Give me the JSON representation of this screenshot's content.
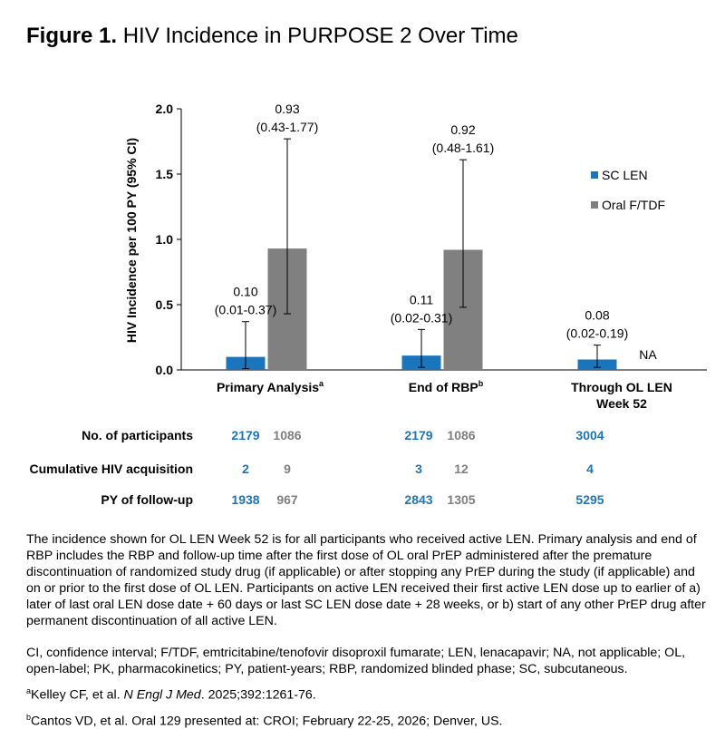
{
  "figure": {
    "label": "Figure 1.",
    "title": "HIV Incidence in PURPOSE 2 Over Time"
  },
  "colors": {
    "sc_len": "#1b75bc",
    "oral_ftdf": "#808080",
    "table_oral": "#7f7f7f"
  },
  "chart_data": {
    "type": "bar",
    "ylabel": "HIV Incidence per 100 PY (95% CI)",
    "ylim": [
      0,
      2.0
    ],
    "yticks": [
      "0.0",
      "0.5",
      "1.0",
      "1.5",
      "2.0"
    ],
    "ytick_values": [
      0,
      0.5,
      1.0,
      1.5,
      2.0
    ],
    "grid": false,
    "legend_position": "right",
    "categories": [
      {
        "label": "Primary Analysis",
        "sup": "a",
        "line2": ""
      },
      {
        "label": "End of RBP",
        "sup": "b",
        "line2": ""
      },
      {
        "label": "Through OL LEN",
        "sup": "",
        "line2": "Week 52"
      }
    ],
    "series": [
      {
        "name": "SC LEN",
        "values": [
          0.1,
          0.11,
          0.08
        ],
        "ci_low": [
          0.01,
          0.02,
          0.02
        ],
        "ci_high": [
          0.37,
          0.31,
          0.19
        ],
        "labels": [
          "0.10",
          "0.11",
          "0.08"
        ],
        "ci_labels": [
          "(0.01-0.37)",
          "(0.02-0.31)",
          "(0.02-0.19)"
        ]
      },
      {
        "name": "Oral F/TDF",
        "values": [
          0.93,
          0.92,
          null
        ],
        "ci_low": [
          0.43,
          0.48,
          null
        ],
        "ci_high": [
          1.77,
          1.61,
          null
        ],
        "labels": [
          "0.93",
          "0.92",
          "NA"
        ],
        "ci_labels": [
          "(0.43-1.77)",
          "(0.48-1.61)",
          ""
        ]
      }
    ]
  },
  "table": {
    "rows": [
      {
        "label": "No. of participants",
        "values": [
          "2179",
          "1086",
          "2179",
          "1086",
          "3004"
        ]
      },
      {
        "label": "Cumulative HIV acquisition",
        "values": [
          "2",
          "9",
          "3",
          "12",
          "4"
        ]
      },
      {
        "label": "PY of follow-up",
        "values": [
          "1938",
          "967",
          "2843",
          "1305",
          "5295"
        ]
      }
    ]
  },
  "notes": {
    "paragraph": "The incidence shown for OL LEN Week 52 is for all participants who received active LEN. Primary analysis and end of RBP includes the RBP and follow-up time after the first dose of OL oral PrEP administered after the premature discontinuation of randomized study drug (if applicable) or after stopping any PrEP during the study (if applicable) and on or prior to the first dose of OL LEN. Participants on active LEN received their first active LEN dose up to earlier of a) later of last oral LEN dose date + 60 days or last SC LEN dose date + 28 weeks, or b) start of any other PrEP drug after permanent discontinuation of all active LEN.",
    "abbreviations": "CI, confidence interval; F/TDF, emtricitabine/tenofovir disoproxil fumarate; LEN, lenacapavir; NA, not applicable; OL, open-label; PK, pharmacokinetics; PY, patient-years; RBP, randomized blinded phase; SC, subcutaneous.",
    "ref_a": {
      "sup": "a",
      "pre": "Kelley CF, et al. ",
      "journal": "N Engl J Med",
      "post": ". 2025;392:1261-76."
    },
    "ref_b": {
      "sup": "b",
      "text": "Cantos VD, et al. Oral 129 presented at: CROI; February 22-25, 2026; Denver, US."
    }
  }
}
